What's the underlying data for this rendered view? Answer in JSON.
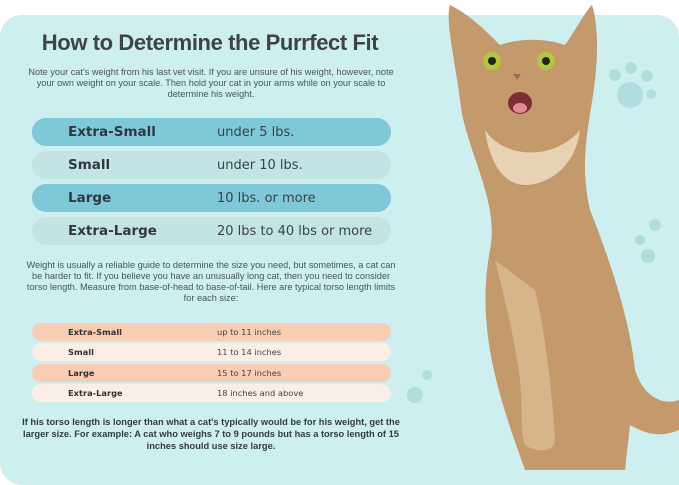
{
  "title": "How to Determine the Purrfect Fit",
  "intro": "Note your cat's weight from his last vet visit. If you are unsure of his weight, however, note your own weight on your scale. Then hold your cat in your arms while on your scale to determine his weight.",
  "weight_sizes": [
    {
      "size": "Extra-Small",
      "range": "under 5 lbs."
    },
    {
      "size": "Small",
      "range": "under 10 lbs."
    },
    {
      "size": "Large",
      "range": "10 lbs. or more"
    },
    {
      "size": "Extra-Large",
      "range": "20 lbs to 40 lbs or more"
    }
  ],
  "torso_intro": "Weight is usually a reliable guide to determine the size you need, but sometimes, a cat can be harder to fit. If you believe you have an unusually long cat, then you need to consider torso length. Measure from base-of-head to base-of-tail. Here are typical torso length limits for each size:",
  "torso_sizes": [
    {
      "size": "Extra-Small",
      "range": "up to 11 inches"
    },
    {
      "size": "Small",
      "range": "11 to 14 inches"
    },
    {
      "size": "Large",
      "range": "15 to 17 inches"
    },
    {
      "size": "Extra-Large",
      "range": "18 inches and above"
    }
  ],
  "footer": "If his torso length is longer than what a cat's typically would be for his weight, get the larger size. For example: A cat who weighs 7 to 9 pounds but has a torso length of 15 inches should use size large.",
  "colors": {
    "panel": "#cdeff0",
    "weight_dark": "#7ec8d8",
    "weight_light": "#c4e3e4",
    "torso_peach": "#f8cdb4",
    "torso_cream": "#fbeee4"
  }
}
